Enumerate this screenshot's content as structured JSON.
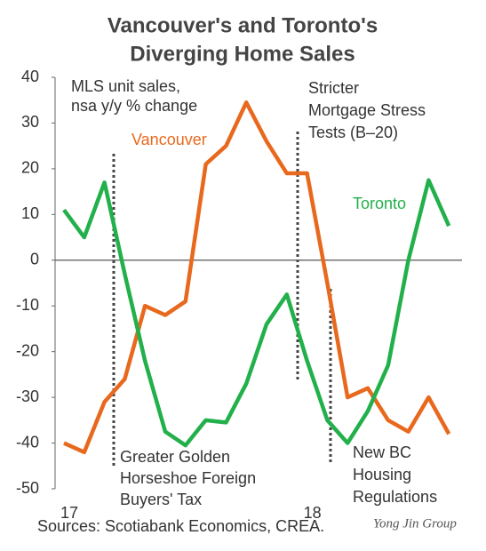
{
  "chart_data": {
    "type": "line",
    "title": [
      "Vancouver's and Toronto's",
      "Diverging Home Sales"
    ],
    "y_label": [
      "MLS unit sales,",
      "nsa y/y % change"
    ],
    "categories": [
      "17",
      null,
      null,
      null,
      null,
      null,
      null,
      null,
      null,
      null,
      null,
      null,
      "18",
      null,
      null,
      null,
      null,
      null,
      null,
      null
    ],
    "series": [
      {
        "name": "Vancouver",
        "color": "#e8691e",
        "values": [
          -40,
          -42,
          -31,
          -26,
          -10,
          -12,
          -9,
          21,
          25,
          34.5,
          26,
          19,
          19,
          -5,
          -30,
          -28,
          -35,
          -37.5,
          -30,
          -38
        ]
      },
      {
        "name": "Toronto",
        "color": "#22b04b",
        "values": [
          11,
          5,
          17,
          -3,
          -22,
          -37.5,
          -40.5,
          -35,
          -35.5,
          -27,
          -14,
          -7.5,
          -22,
          -35,
          -40,
          -33,
          -23,
          0,
          17.5,
          7.5
        ]
      }
    ],
    "ylim": [
      -50,
      40
    ],
    "yticks": [
      -50,
      -40,
      -30,
      -20,
      -10,
      0,
      10,
      20,
      30,
      40
    ],
    "annotations": [
      [
        "Stricter",
        "Mortgage Stress",
        "Tests (B–20)"
      ],
      [
        "Greater Golden",
        "Horseshoe Foreign",
        "Buyers' Tax"
      ],
      [
        "New BC",
        "Housing",
        "Regulations"
      ]
    ],
    "source": "Sources: Scotiabank Economics, CREA.",
    "watermark": "Yong Jin Group"
  }
}
